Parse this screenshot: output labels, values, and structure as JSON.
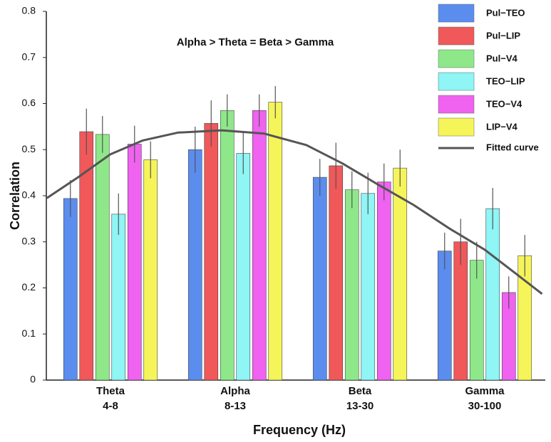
{
  "chart_data": {
    "type": "bar",
    "annotation": "Alpha > Theta = Beta > Gamma",
    "x_label": "Frequency (Hz)",
    "y_label": "Correlation",
    "categories": [
      "Theta",
      "Alpha",
      "Beta",
      "Gamma"
    ],
    "category_sublabels": [
      "4-8",
      "8-13",
      "13-30",
      "30-100"
    ],
    "ylim": [
      0,
      0.8
    ],
    "yticks": [
      0,
      0.1,
      0.2,
      0.3,
      0.4,
      0.5,
      0.6,
      0.7,
      0.8
    ],
    "series": [
      {
        "name": "Pul−TEO",
        "color": "#5b8def",
        "values": [
          0.394,
          0.5,
          0.44,
          0.28
        ],
        "errors": [
          0.04,
          0.05,
          0.04,
          0.04
        ]
      },
      {
        "name": "Pul−LIP",
        "color": "#f0585a",
        "values": [
          0.539,
          0.557,
          0.465,
          0.3
        ],
        "errors": [
          0.05,
          0.05,
          0.05,
          0.05
        ]
      },
      {
        "name": "Pul−V4",
        "color": "#8ee88a",
        "values": [
          0.533,
          0.585,
          0.413,
          0.26
        ],
        "errors": [
          0.04,
          0.035,
          0.04,
          0.04
        ]
      },
      {
        "name": "TEO−LIP",
        "color": "#8ff5f5",
        "values": [
          0.36,
          0.492,
          0.405,
          0.372
        ],
        "errors": [
          0.045,
          0.045,
          0.045,
          0.045
        ]
      },
      {
        "name": "TEO−V4",
        "color": "#f062f0",
        "values": [
          0.512,
          0.585,
          0.43,
          0.19
        ],
        "errors": [
          0.04,
          0.035,
          0.04,
          0.035
        ]
      },
      {
        "name": "LIP−V4",
        "color": "#f5f55a",
        "values": [
          0.478,
          0.603,
          0.46,
          0.27
        ],
        "errors": [
          0.04,
          0.035,
          0.04,
          0.045
        ]
      }
    ],
    "fitted_curve": {
      "name": "Fitted curve",
      "color": "#555555",
      "x": [
        -0.51,
        -0.26,
        0,
        0.26,
        0.54,
        0.89,
        1.23,
        1.57,
        1.86,
        2.14,
        2.43,
        2.71,
        3,
        3.23,
        3.46
      ],
      "values": [
        0.395,
        0.44,
        0.49,
        0.52,
        0.537,
        0.542,
        0.535,
        0.51,
        0.47,
        0.425,
        0.38,
        0.33,
        0.283,
        0.235,
        0.187
      ]
    }
  }
}
